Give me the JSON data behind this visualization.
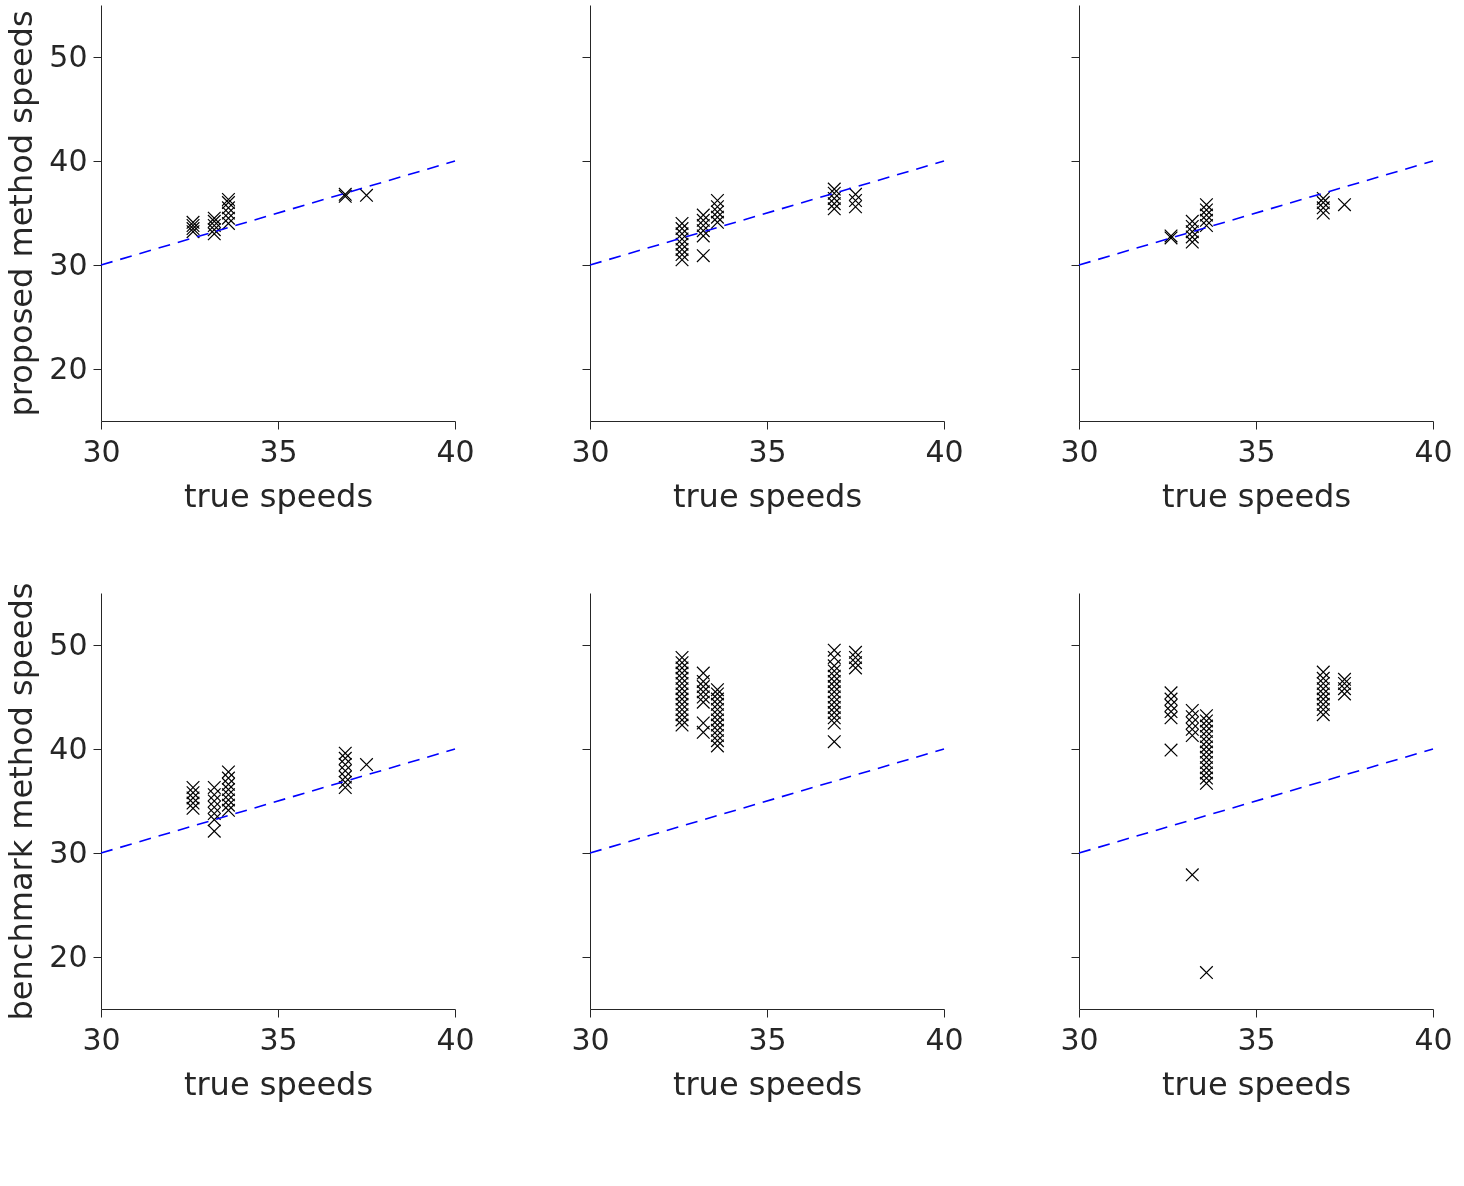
{
  "chart_data": [
    {
      "type": "scatter",
      "xlabel": "true speeds",
      "ylabel": "proposed method speeds",
      "xlim": [
        30,
        40
      ],
      "xticks": [
        30,
        35,
        40
      ],
      "ylim": [
        15,
        55
      ],
      "yticks": [
        20,
        30,
        40,
        50
      ],
      "grid": false,
      "series": [
        {
          "color": "#000000",
          "marker": "cross",
          "x": [
            32.6,
            32.6,
            32.6,
            32.6,
            33.2,
            33.2,
            33.2,
            33.2,
            33.2,
            33.6,
            33.6,
            33.6,
            33.6,
            33.6,
            33.6,
            36.9,
            36.9,
            37.5
          ],
          "values": [
            33.2,
            33.5,
            33.8,
            34.1,
            33.0,
            33.4,
            33.8,
            34.2,
            34.5,
            34.0,
            34.5,
            35.0,
            35.5,
            36.0,
            36.3,
            36.6,
            36.8,
            36.7
          ]
        },
        {
          "type": "line",
          "color": "#0000ff",
          "marker": "none",
          "line_style": "dashed",
          "x": [
            30,
            40
          ],
          "values": [
            30,
            40
          ]
        }
      ]
    },
    {
      "type": "scatter",
      "xlabel": "true speeds",
      "xlim": [
        30,
        40
      ],
      "xticks": [
        30,
        35,
        40
      ],
      "ylim": [
        15,
        55
      ],
      "yticks": [
        20,
        30,
        40,
        50
      ],
      "tick_labels": "x",
      "grid": false,
      "series": [
        {
          "color": "#000000",
          "marker": "cross",
          "x": [
            32.6,
            32.6,
            32.6,
            32.6,
            32.6,
            32.6,
            32.6,
            32.6,
            33.2,
            33.2,
            33.2,
            33.2,
            33.2,
            33.2,
            33.6,
            33.6,
            33.6,
            33.6,
            33.6,
            36.9,
            36.9,
            36.9,
            36.9,
            36.9,
            37.5,
            37.5,
            37.5
          ],
          "values": [
            30.5,
            31.0,
            31.5,
            32.0,
            32.5,
            33.0,
            33.5,
            34.0,
            30.9,
            32.8,
            33.3,
            33.8,
            34.3,
            34.8,
            34.1,
            34.6,
            35.1,
            35.6,
            36.2,
            35.4,
            35.9,
            36.4,
            36.9,
            37.3,
            35.6,
            36.2,
            36.8
          ]
        },
        {
          "type": "line",
          "color": "#0000ff",
          "marker": "none",
          "line_style": "dashed",
          "x": [
            30,
            40
          ],
          "values": [
            30,
            40
          ]
        }
      ]
    },
    {
      "type": "scatter",
      "xlabel": "true speeds",
      "xlim": [
        30,
        40
      ],
      "xticks": [
        30,
        35,
        40
      ],
      "ylim": [
        15,
        55
      ],
      "yticks": [
        20,
        30,
        40,
        50
      ],
      "tick_labels": "x",
      "grid": false,
      "series": [
        {
          "color": "#000000",
          "marker": "cross",
          "x": [
            32.6,
            32.6,
            33.2,
            33.2,
            33.2,
            33.2,
            33.2,
            33.6,
            33.6,
            33.6,
            33.6,
            33.6,
            36.9,
            36.9,
            36.9,
            36.9,
            37.5
          ],
          "values": [
            32.6,
            32.8,
            32.2,
            32.7,
            33.2,
            33.7,
            34.2,
            33.8,
            34.3,
            34.8,
            35.3,
            35.8,
            35.0,
            35.5,
            36.0,
            36.4,
            35.8
          ]
        },
        {
          "type": "line",
          "color": "#0000ff",
          "marker": "none",
          "line_style": "dashed",
          "x": [
            30,
            40
          ],
          "values": [
            30,
            40
          ]
        }
      ]
    },
    {
      "type": "scatter",
      "xlabel": "true speeds",
      "ylabel": "benchmark method speeds",
      "xlim": [
        30,
        40
      ],
      "xticks": [
        30,
        35,
        40
      ],
      "ylim": [
        15,
        55
      ],
      "yticks": [
        20,
        30,
        40,
        50
      ],
      "grid": false,
      "series": [
        {
          "color": "#000000",
          "marker": "cross",
          "x": [
            32.6,
            32.6,
            32.6,
            32.6,
            32.6,
            33.2,
            33.2,
            33.2,
            33.2,
            33.2,
            33.2,
            33.2,
            33.6,
            33.6,
            33.6,
            33.6,
            33.6,
            33.6,
            33.6,
            33.6,
            36.9,
            36.9,
            36.9,
            36.9,
            36.9,
            36.9,
            36.9,
            37.5
          ],
          "values": [
            34.3,
            34.8,
            35.3,
            35.8,
            36.3,
            32.1,
            33.2,
            33.8,
            34.4,
            35.0,
            35.6,
            36.3,
            34.1,
            34.6,
            35.1,
            35.6,
            36.1,
            36.6,
            37.2,
            37.8,
            36.3,
            36.8,
            37.3,
            37.9,
            38.5,
            39.1,
            39.6,
            38.5
          ]
        },
        {
          "type": "line",
          "color": "#0000ff",
          "marker": "none",
          "line_style": "dashed",
          "x": [
            30,
            40
          ],
          "values": [
            30,
            40
          ]
        }
      ]
    },
    {
      "type": "scatter",
      "xlabel": "true speeds",
      "xlim": [
        30,
        40
      ],
      "xticks": [
        30,
        35,
        40
      ],
      "ylim": [
        15,
        55
      ],
      "yticks": [
        20,
        30,
        40,
        50
      ],
      "tick_labels": "x",
      "grid": false,
      "series": [
        {
          "color": "#000000",
          "marker": "cross",
          "x": [
            32.6,
            32.6,
            32.6,
            32.6,
            32.6,
            32.6,
            32.6,
            32.6,
            32.6,
            32.6,
            32.6,
            32.6,
            32.6,
            32.6,
            33.2,
            33.2,
            33.2,
            33.2,
            33.2,
            33.2,
            33.2,
            33.2,
            33.6,
            33.6,
            33.6,
            33.6,
            33.6,
            33.6,
            33.6,
            33.6,
            33.6,
            33.6,
            33.6,
            33.6,
            36.9,
            36.9,
            36.9,
            36.9,
            36.9,
            36.9,
            36.9,
            36.9,
            36.9,
            36.9,
            36.9,
            36.9,
            36.9,
            36.9,
            36.9,
            37.5,
            37.5,
            37.5,
            37.5
          ],
          "values": [
            42.3,
            42.8,
            43.3,
            43.8,
            44.3,
            44.8,
            45.3,
            45.8,
            46.3,
            46.8,
            47.3,
            47.8,
            48.3,
            48.8,
            41.6,
            42.5,
            44.5,
            45.0,
            45.5,
            46.0,
            46.5,
            47.3,
            40.3,
            40.8,
            41.3,
            41.8,
            42.3,
            42.8,
            43.3,
            43.8,
            44.3,
            44.8,
            45.3,
            45.7,
            40.7,
            42.5,
            43.0,
            43.5,
            44.0,
            44.5,
            45.0,
            45.5,
            46.0,
            46.5,
            47.0,
            47.5,
            48.0,
            48.8,
            49.5,
            47.8,
            48.3,
            48.8,
            49.3
          ]
        },
        {
          "type": "line",
          "color": "#0000ff",
          "marker": "none",
          "line_style": "dashed",
          "x": [
            30,
            40
          ],
          "values": [
            30,
            40
          ]
        }
      ]
    },
    {
      "type": "scatter",
      "xlabel": "true speeds",
      "xlim": [
        30,
        40
      ],
      "xticks": [
        30,
        35,
        40
      ],
      "ylim": [
        15,
        55
      ],
      "yticks": [
        20,
        30,
        40,
        50
      ],
      "tick_labels": "x",
      "grid": false,
      "series": [
        {
          "color": "#000000",
          "marker": "cross",
          "x": [
            32.6,
            32.6,
            32.6,
            32.6,
            32.6,
            32.6,
            33.2,
            33.2,
            33.2,
            33.2,
            33.2,
            33.2,
            33.6,
            33.6,
            33.6,
            33.6,
            33.6,
            33.6,
            33.6,
            33.6,
            33.6,
            33.6,
            33.6,
            33.6,
            33.6,
            33.6,
            33.6,
            36.9,
            36.9,
            36.9,
            36.9,
            36.9,
            36.9,
            36.9,
            36.9,
            36.9,
            37.5,
            37.5,
            37.5,
            37.5
          ],
          "values": [
            39.9,
            43.0,
            43.6,
            44.2,
            44.8,
            45.4,
            27.9,
            41.3,
            41.9,
            42.5,
            43.1,
            43.7,
            18.5,
            36.7,
            37.2,
            37.7,
            38.2,
            38.7,
            39.2,
            39.7,
            40.2,
            40.7,
            41.2,
            41.7,
            42.2,
            42.7,
            43.2,
            43.3,
            43.8,
            44.3,
            44.8,
            45.3,
            45.8,
            46.3,
            46.8,
            47.4,
            45.3,
            45.8,
            46.3,
            46.7
          ]
        },
        {
          "type": "line",
          "color": "#0000ff",
          "marker": "none",
          "line_style": "dashed",
          "x": [
            30,
            40
          ],
          "values": [
            30,
            40
          ]
        }
      ]
    }
  ]
}
